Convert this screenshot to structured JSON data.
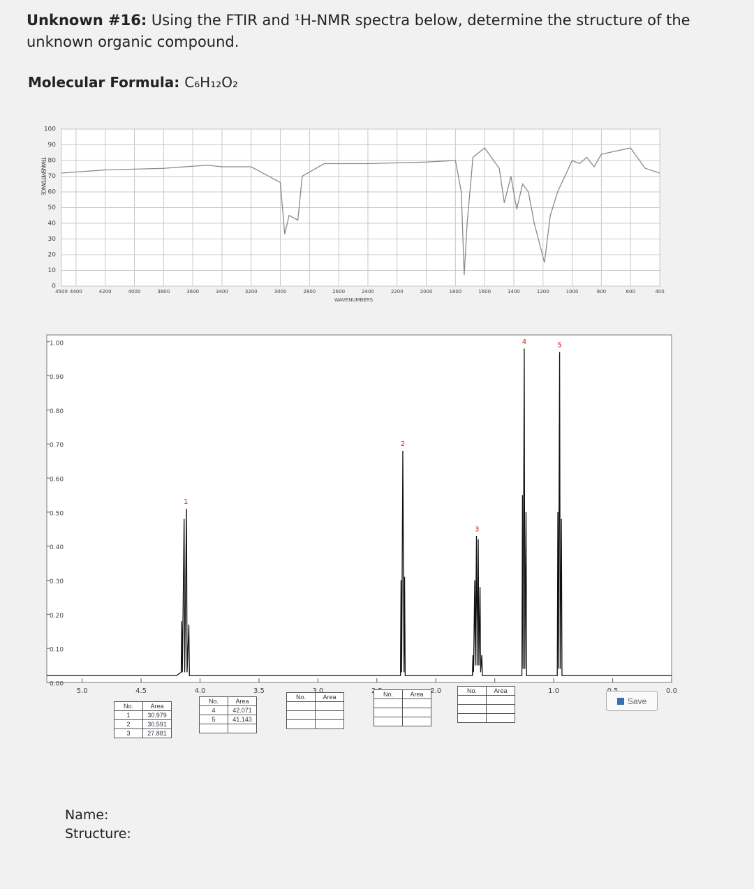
{
  "header": {
    "title_bold": "Unknown #16:",
    "title_rest": "Using the FTIR and ¹H-NMR spectra below, determine the structure of the unknown organic compound.",
    "formula_label": "Molecular Formula:",
    "formula": "C₆H₁₂O₂"
  },
  "chart_data": [
    {
      "type": "line",
      "y_label": "TRANSMITTANCE",
      "x_label": "WAVENUMBERS",
      "x": [
        4500,
        4200,
        3800,
        3500,
        3400,
        3200,
        3000,
        2970,
        2940,
        2880,
        2850,
        2700,
        2400,
        2000,
        1800,
        1760,
        1740,
        1720,
        1680,
        1600,
        1500,
        1465,
        1420,
        1380,
        1340,
        1300,
        1260,
        1190,
        1150,
        1100,
        1050,
        1000,
        950,
        900,
        850,
        800,
        700,
        600,
        500,
        400
      ],
      "series": [
        {
          "color": "#8a8a8a",
          "values": [
            72,
            74,
            75,
            77,
            76,
            76,
            66,
            33,
            45,
            42,
            70,
            78,
            78,
            79,
            80,
            60,
            7,
            40,
            82,
            88,
            75,
            53,
            70,
            49,
            65,
            60,
            40,
            15,
            45,
            60,
            70,
            80,
            78,
            82,
            76,
            84,
            86,
            88,
            75,
            72
          ]
        }
      ],
      "xlim": [
        4500,
        400
      ],
      "ylim": [
        0,
        100
      ],
      "xticks": [
        4500,
        4400,
        4200,
        4000,
        3800,
        3600,
        3400,
        3200,
        3000,
        2800,
        2600,
        2400,
        2200,
        2000,
        1800,
        1600,
        1400,
        1200,
        1000,
        800,
        600,
        400
      ],
      "yticks": [
        0,
        10,
        20,
        30,
        40,
        50,
        60,
        70,
        80,
        90,
        100
      ],
      "grid": true
    },
    {
      "type": "line",
      "x": [
        5.3,
        4.2,
        4.16,
        4.155,
        4.15,
        4.135,
        4.13,
        4.115,
        4.11,
        4.095,
        4.09,
        2.3,
        2.295,
        2.29,
        2.28,
        2.27,
        2.265,
        2.26,
        1.69,
        1.685,
        1.68,
        1.67,
        1.665,
        1.655,
        1.65,
        1.64,
        1.635,
        1.625,
        1.62,
        1.61,
        1.605,
        1.27,
        1.265,
        1.26,
        1.25,
        1.245,
        1.235,
        1.23,
        0.97,
        0.965,
        0.96,
        0.95,
        0.945,
        0.935,
        0.93,
        0
      ],
      "series": [
        {
          "color": "#111111",
          "values": [
            0.02,
            0.02,
            0.03,
            0.18,
            0.03,
            0.48,
            0.03,
            0.51,
            0.03,
            0.17,
            0.02,
            0.02,
            0.3,
            0.03,
            0.68,
            0.03,
            0.31,
            0.02,
            0.02,
            0.08,
            0.03,
            0.3,
            0.05,
            0.43,
            0.05,
            0.42,
            0.05,
            0.28,
            0.03,
            0.08,
            0.02,
            0.02,
            0.55,
            0.04,
            0.98,
            0.04,
            0.5,
            0.02,
            0.02,
            0.5,
            0.04,
            0.97,
            0.04,
            0.48,
            0.02,
            0.02
          ]
        }
      ],
      "xlim": [
        5.3,
        0
      ],
      "ylim": [
        0,
        1.02
      ],
      "xticks": [
        {
          "value": 5,
          "label": "5.0"
        },
        {
          "value": 4.5,
          "label": "4.5"
        },
        {
          "value": 4,
          "label": "4.0"
        },
        {
          "value": 3.5,
          "label": "3.5"
        },
        {
          "value": 3,
          "label": "3.0"
        },
        {
          "value": 2.5,
          "label": "2.5"
        },
        {
          "value": 2,
          "label": "2.0"
        },
        {
          "value": 1.5,
          "label": "1.5"
        },
        {
          "value": 1,
          "label": "1.0"
        },
        {
          "value": 0.5,
          "label": "0.5"
        },
        {
          "value": 0,
          "label": "0.0"
        }
      ],
      "yticks": [
        {
          "value": 0,
          "label": "0.00"
        },
        {
          "value": 0.1,
          "label": "0.10"
        },
        {
          "value": 0.2,
          "label": "0.20"
        },
        {
          "value": 0.3,
          "label": "0.30"
        },
        {
          "value": 0.4,
          "label": "0.40"
        },
        {
          "value": 0.5,
          "label": "0.50"
        },
        {
          "value": 0.6,
          "label": "0.60"
        },
        {
          "value": 0.7,
          "label": "0.70"
        },
        {
          "value": 0.8,
          "label": "0.80"
        },
        {
          "value": 0.9,
          "label": "0.90"
        },
        {
          "value": 1,
          "label": "1.00"
        }
      ],
      "grid": false,
      "annotations": [
        {
          "text": "1",
          "x": 4.12,
          "y": 0.53
        },
        {
          "text": "2",
          "x": 2.28,
          "y": 0.7
        },
        {
          "text": "3",
          "x": 1.65,
          "y": 0.45
        },
        {
          "text": "4",
          "x": 1.25,
          "y": 1.0
        },
        {
          "text": "5",
          "x": 0.95,
          "y": 0.99
        }
      ],
      "annotation_color": "#d02020"
    }
  ],
  "integration_tables": [
    {
      "columns": [
        "No.",
        "Area"
      ],
      "rows": [
        [
          1,
          30.979
        ],
        [
          2,
          30.591
        ],
        [
          3,
          27.881
        ]
      ]
    },
    {
      "columns": [
        "No.",
        "Area"
      ],
      "rows": [
        [
          4,
          42.071
        ],
        [
          5,
          41.143
        ]
      ]
    },
    {
      "columns": [
        "No.",
        "Area"
      ],
      "rows": []
    },
    {
      "columns": [
        "No.",
        "Area"
      ],
      "rows": []
    },
    {
      "columns": [
        "No.",
        "Area"
      ],
      "rows": []
    }
  ],
  "save_button": "Save",
  "footer": {
    "name": "Name:",
    "structure": "Structure:"
  }
}
